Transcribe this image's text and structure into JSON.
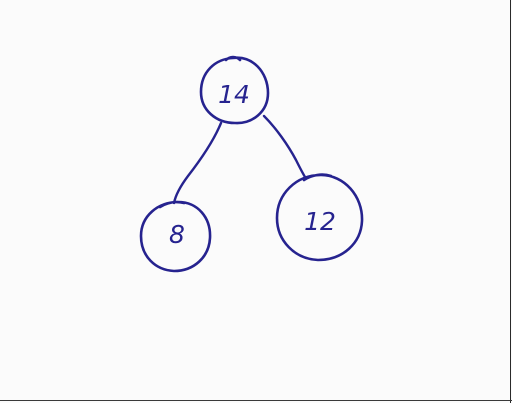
{
  "ink_color": "#26238f",
  "tree": {
    "root": {
      "label": "14"
    },
    "left_child": {
      "label": "8"
    },
    "right_child": {
      "label": "12"
    }
  }
}
